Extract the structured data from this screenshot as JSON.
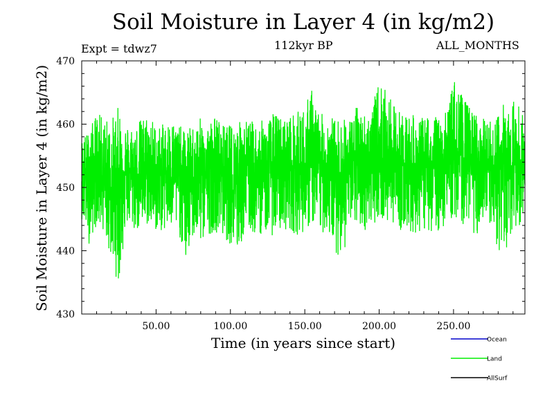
{
  "chart_data": {
    "type": "line",
    "title": "Soil Moisture in Layer 4 (in kg/m2)",
    "subtitle": "112kyr BP",
    "experiment": "Expt = tdwz7",
    "period": "ALL_MONTHS",
    "xlabel": "Time (in years since start)",
    "ylabel": "Soil Moisture in Layer 4 (in kg/m2)",
    "xlim": [
      0,
      298
    ],
    "ylim": [
      430,
      470
    ],
    "xticks": [
      50,
      100,
      150,
      200,
      250
    ],
    "xtick_labels": [
      "50.00",
      "100.00",
      "150.00",
      "200.00",
      "250.00"
    ],
    "yticks": [
      430,
      440,
      450,
      460,
      470
    ],
    "ytick_labels": [
      "430",
      "440",
      "450",
      "460",
      "470"
    ],
    "grid": false,
    "legend_position": "bottom-right",
    "series": [
      {
        "name": "Ocean",
        "color": "#0000cc",
        "values": []
      },
      {
        "name": "Land",
        "color": "#00ee00",
        "x": [
          0,
          5,
          10,
          15,
          20,
          25,
          30,
          35,
          40,
          45,
          50,
          55,
          60,
          65,
          70,
          75,
          80,
          85,
          90,
          95,
          100,
          105,
          110,
          115,
          120,
          125,
          130,
          135,
          140,
          145,
          150,
          155,
          160,
          165,
          170,
          175,
          180,
          185,
          190,
          195,
          200,
          205,
          210,
          215,
          220,
          225,
          230,
          235,
          240,
          245,
          250,
          255,
          260,
          265,
          270,
          275,
          280,
          285,
          290,
          295,
          298
        ],
        "mean": [
          452.0,
          452.5,
          453.0,
          452.0,
          450.0,
          451.5,
          453.0,
          452.0,
          452.5,
          452.0,
          451.5,
          452.5,
          453.0,
          452.0,
          450.5,
          451.5,
          452.0,
          452.5,
          453.5,
          452.0,
          451.0,
          452.0,
          452.5,
          452.0,
          452.5,
          453.0,
          453.5,
          452.5,
          453.0,
          452.5,
          452.5,
          454.0,
          453.0,
          453.0,
          452.5,
          452.0,
          453.0,
          453.5,
          453.0,
          454.0,
          455.0,
          454.5,
          454.0,
          453.5,
          453.5,
          452.5,
          453.0,
          453.5,
          453.0,
          454.0,
          455.5,
          454.5,
          454.0,
          453.5,
          453.0,
          452.5,
          453.5,
          454.0,
          453.5,
          453.0,
          452.5
        ],
        "upper": [
          458.0,
          459.0,
          462.0,
          461.0,
          461.0,
          463.0,
          460.0,
          460.0,
          461.0,
          462.0,
          460.0,
          460.0,
          461.0,
          460.0,
          459.0,
          460.0,
          461.0,
          460.5,
          461.5,
          460.0,
          460.0,
          460.5,
          461.0,
          460.5,
          460.5,
          461.0,
          462.0,
          461.0,
          461.5,
          462.0,
          463.0,
          466.0,
          461.5,
          462.0,
          461.0,
          461.0,
          461.0,
          463.0,
          462.0,
          462.5,
          467.0,
          465.0,
          463.0,
          462.0,
          462.0,
          461.0,
          461.0,
          462.0,
          461.0,
          462.0,
          467.5,
          465.0,
          463.0,
          462.0,
          461.0,
          460.5,
          462.0,
          464.0,
          464.5,
          463.0,
          461.0
        ],
        "lower": [
          445.0,
          441.0,
          444.0,
          443.0,
          438.0,
          434.5,
          444.0,
          443.0,
          443.0,
          444.0,
          443.0,
          443.0,
          443.0,
          443.0,
          438.0,
          442.0,
          441.0,
          442.5,
          443.0,
          442.0,
          441.0,
          439.0,
          443.0,
          442.5,
          442.5,
          443.0,
          442.0,
          443.5,
          443.0,
          442.5,
          443.0,
          444.0,
          442.5,
          443.0,
          440.0,
          438.5,
          443.0,
          444.0,
          443.0,
          444.0,
          445.0,
          444.0,
          444.5,
          443.0,
          443.0,
          442.5,
          443.0,
          443.0,
          443.0,
          444.0,
          445.0,
          444.0,
          444.5,
          442.0,
          443.0,
          442.0,
          440.0,
          439.0,
          443.5,
          444.0,
          444.0
        ]
      },
      {
        "name": "AllSurf",
        "color": "#000000",
        "values": []
      }
    ]
  }
}
